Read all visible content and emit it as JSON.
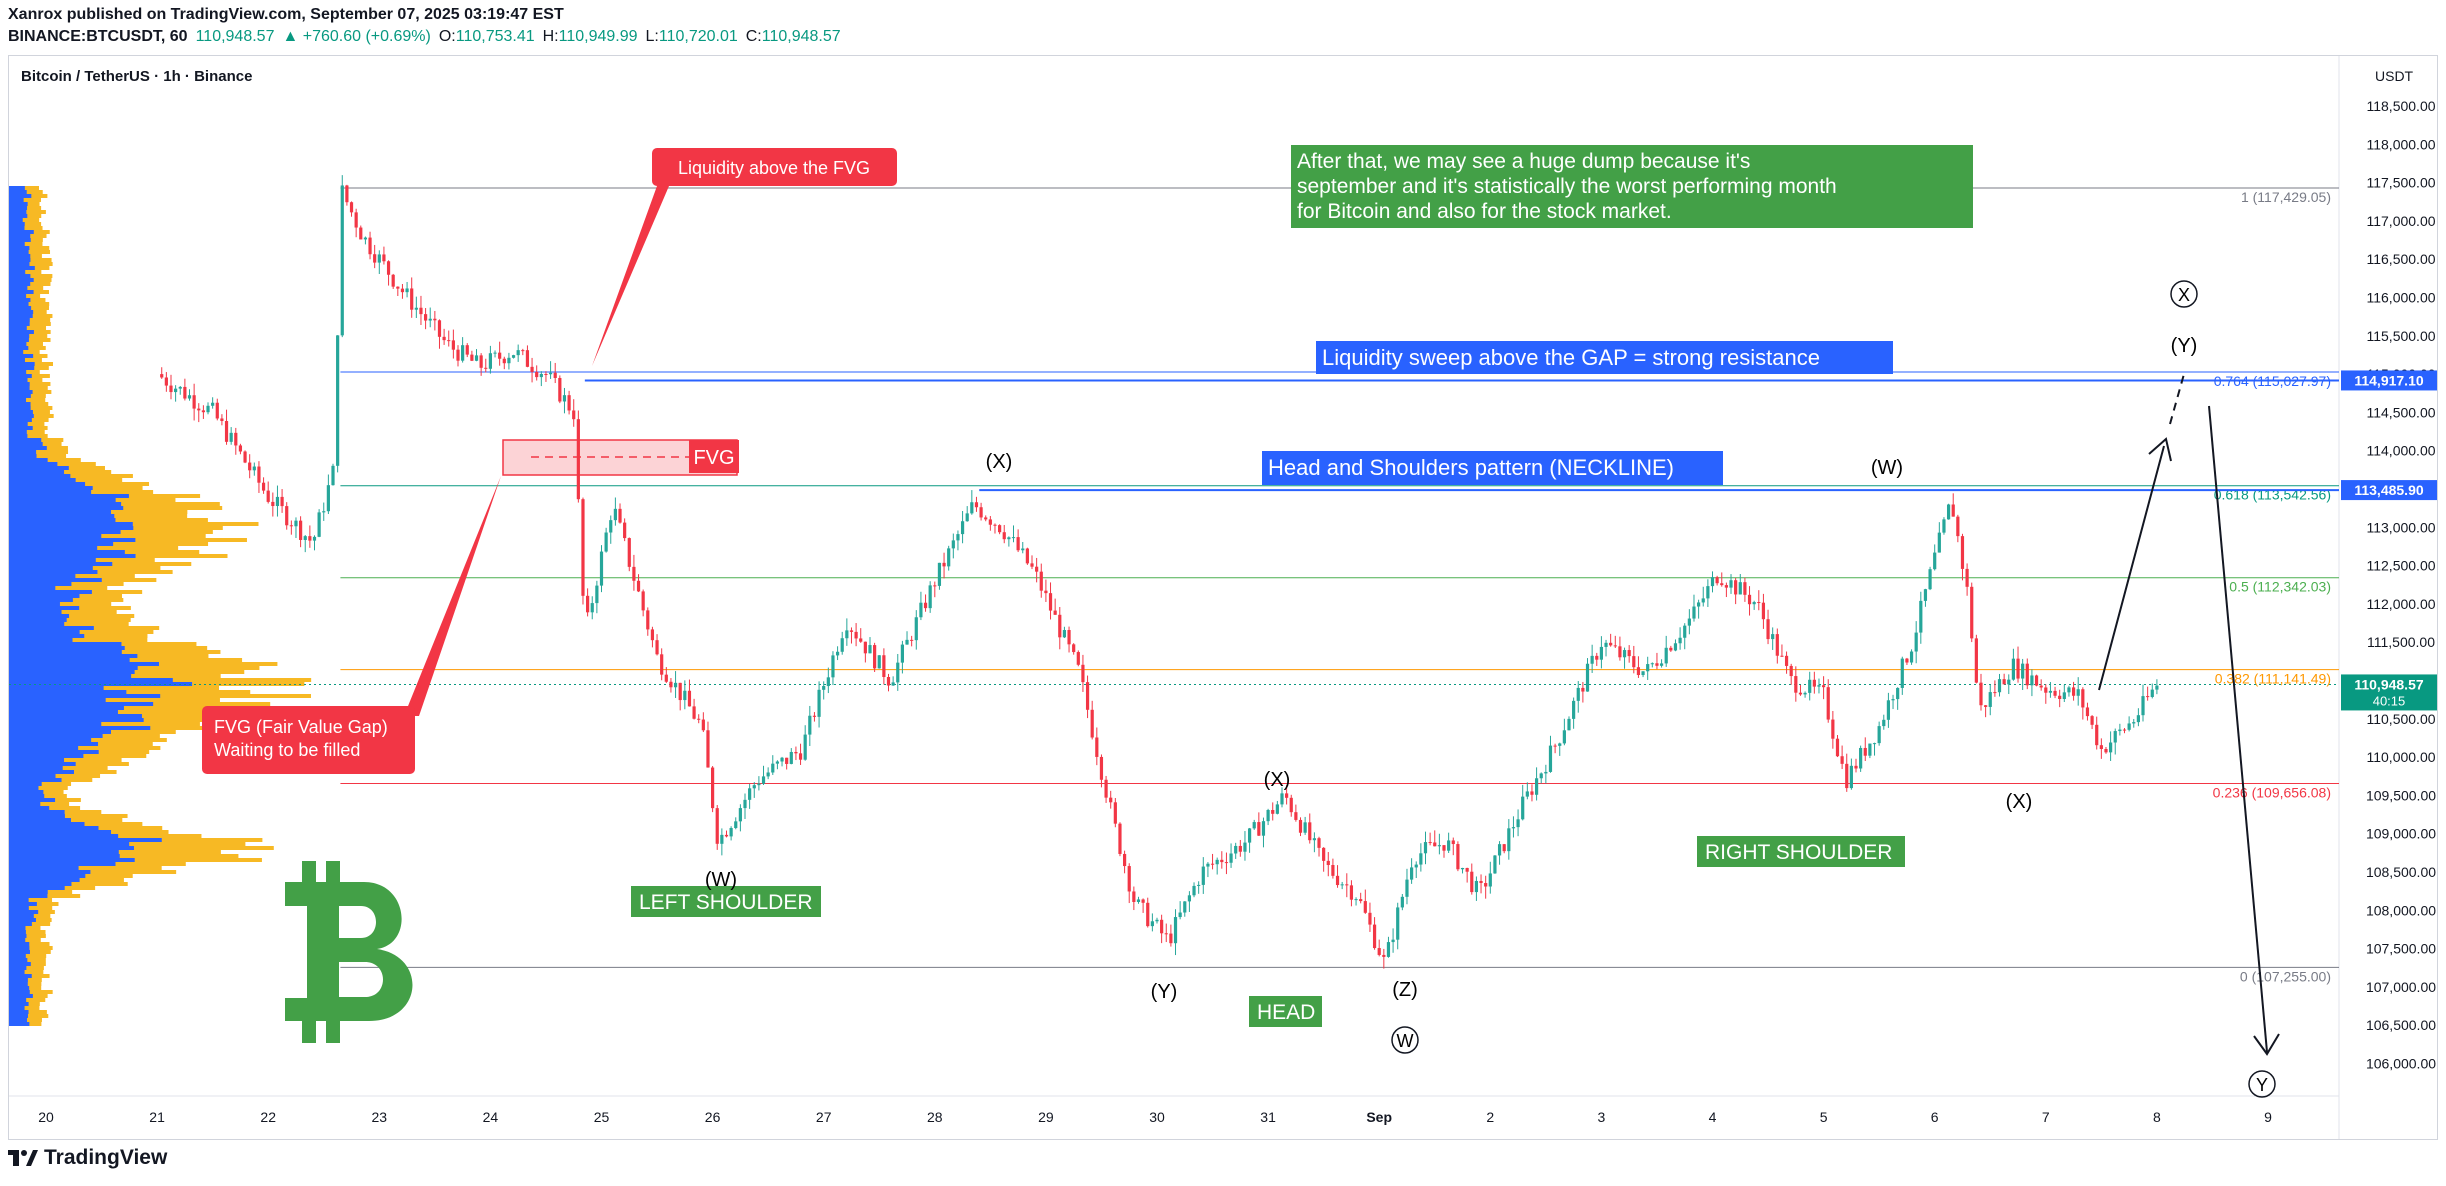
{
  "header": {
    "publish_line": "Xanrox published on TradingView.com, September 07, 2025 03:19:47 EST",
    "symbol": "BINANCE:BTCUSDT, 60",
    "last": "110,948.57",
    "change": "▲ +760.60 (+0.69%)",
    "o_label": "O:",
    "o_value": "110,753.41",
    "h_label": "H:",
    "h_value": "110,949.99",
    "l_label": "L:",
    "l_value": "110,720.01",
    "c_label": "C:",
    "c_value": "110,948.57"
  },
  "chart_title": "Bitcoin / TetherUS · 1h · Binance",
  "currency": "USDT",
  "footer_brand": "TradingView",
  "colors": {
    "up": "#089981",
    "up_bright": "#26a69a",
    "down": "#f23645",
    "blue": "#2962ff",
    "green_box": "#43a047",
    "red_box": "#f23645",
    "vp_blue": "#2962ff",
    "vp_yellow": "#f7b924"
  },
  "chart_data": {
    "type": "candlestick",
    "title": "Bitcoin / TetherUS · 1h · Binance",
    "ylim": [
      105500,
      119000
    ],
    "y_ticks": [
      106000,
      106500,
      107000,
      107500,
      108000,
      108500,
      109000,
      109500,
      110000,
      110500,
      111000,
      111500,
      112000,
      112500,
      113000,
      113500,
      114000,
      114500,
      115000,
      115500,
      116000,
      116500,
      117000,
      117500,
      118000,
      118500
    ],
    "y_tick_labels": [
      "106,000.00",
      "106,500.00",
      "107,000.00",
      "107,500.00",
      "108,000.00",
      "108,500.00",
      "109,000.00",
      "109,500.00",
      "110,000.00",
      "110,500.00",
      "111,000.00",
      "111,500.00",
      "112,000.00",
      "112,500.00",
      "113,000.00",
      "113,500.00",
      "114,000.00",
      "114,500.00",
      "115,000.00",
      "115,500.00",
      "116,000.00",
      "116,500.00",
      "117,000.00",
      "117,500.00",
      "118,000.00",
      "118,500.00"
    ],
    "x_ticks": [
      "20",
      "21",
      "22",
      "23",
      "24",
      "25",
      "26",
      "27",
      "28",
      "29",
      "30",
      "31",
      "Sep",
      "2",
      "3",
      "4",
      "5",
      "6",
      "7",
      "8",
      "9"
    ],
    "x_tick_days": [
      0,
      1,
      2,
      3,
      4,
      5,
      6,
      7,
      8,
      9,
      10,
      11,
      12,
      13,
      14,
      15,
      16,
      17,
      18,
      19,
      20
    ],
    "price_path": [
      [
        1.0,
        115000
      ],
      [
        1.5,
        114500
      ],
      [
        2.0,
        113400
      ],
      [
        2.4,
        112800
      ],
      [
        2.6,
        113800
      ],
      [
        2.65,
        117429
      ],
      [
        2.85,
        116800
      ],
      [
        3.2,
        116100
      ],
      [
        3.6,
        115400
      ],
      [
        3.9,
        115100
      ],
      [
        4.2,
        115300
      ],
      [
        4.5,
        115000
      ],
      [
        4.75,
        114500
      ],
      [
        4.85,
        111600
      ],
      [
        5.1,
        113300
      ],
      [
        5.5,
        111300
      ],
      [
        5.9,
        110400
      ],
      [
        6.05,
        108900
      ],
      [
        6.4,
        109700
      ],
      [
        6.8,
        110100
      ],
      [
        7.2,
        111800
      ],
      [
        7.6,
        111000
      ],
      [
        8.0,
        112300
      ],
      [
        8.35,
        113300
      ],
      [
        8.6,
        113000
      ],
      [
        8.9,
        112400
      ],
      [
        9.3,
        111100
      ],
      [
        9.6,
        109200
      ],
      [
        9.8,
        108100
      ],
      [
        10.1,
        107600
      ],
      [
        10.4,
        108500
      ],
      [
        10.8,
        108900
      ],
      [
        11.15,
        109500
      ],
      [
        11.5,
        108600
      ],
      [
        11.8,
        108200
      ],
      [
        12.05,
        107300
      ],
      [
        12.3,
        108700
      ],
      [
        12.6,
        108900
      ],
      [
        12.9,
        108200
      ],
      [
        13.3,
        109400
      ],
      [
        13.6,
        110200
      ],
      [
        14.0,
        111500
      ],
      [
        14.4,
        111100
      ],
      [
        14.8,
        111800
      ],
      [
        15.05,
        112400
      ],
      [
        15.4,
        112000
      ],
      [
        15.7,
        111000
      ],
      [
        16.0,
        110800
      ],
      [
        16.2,
        109700
      ],
      [
        16.5,
        110400
      ],
      [
        16.8,
        111500
      ],
      [
        17.0,
        112600
      ],
      [
        17.15,
        113350
      ],
      [
        17.3,
        112100
      ],
      [
        17.4,
        110600
      ],
      [
        17.7,
        111200
      ],
      [
        18.0,
        110900
      ],
      [
        18.3,
        110800
      ],
      [
        18.5,
        110100
      ],
      [
        18.8,
        110500
      ],
      [
        19.0,
        110949
      ]
    ],
    "ohlc_last": {
      "open": 110753.41,
      "high": 110949.99,
      "low": 110720.01,
      "close": 110948.57
    },
    "fib_levels": [
      {
        "label": "1 (117,429.05)",
        "value": 117429.05,
        "color": "#787b86"
      },
      {
        "label": "0.764 (115,027.97)",
        "value": 115027.97,
        "color": "#2962ff"
      },
      {
        "label": "0.618 (113,542.56)",
        "value": 113542.56,
        "color": "#089981"
      },
      {
        "label": "0.5 (112,342.03)",
        "value": 112342.03,
        "color": "#4caf50"
      },
      {
        "label": "0.382 (111,141.49)",
        "value": 111141.49,
        "color": "#ff9800"
      },
      {
        "label": "0.236 (109,656.08)",
        "value": 109656.08,
        "color": "#f23645"
      },
      {
        "label": "0 (107,255.00)",
        "value": 107255.0,
        "color": "#787b86"
      }
    ],
    "price_tags": [
      {
        "label": "114,917.10",
        "value": 114917.1,
        "color": "#2962ff"
      },
      {
        "label": "113,485.90",
        "value": 113485.9,
        "color": "#2962ff"
      },
      {
        "label": "110,948.57",
        "sub": "40:15",
        "value": 110948.57,
        "color": "#089981"
      }
    ],
    "annotations": {
      "liquidity_fvg": "Liquidity above the FVG",
      "fvg": "FVG",
      "fvg_note_line1": "FVG (Fair Value Gap)",
      "fvg_note_line2": "Waiting to be filled",
      "dump_line1": "After that, we may see a huge dump because it's",
      "dump_line2": "september and it's statistically the worst performing month",
      "dump_line3": "for Bitcoin and also for the stock market.",
      "sweep": "Liquidity sweep above the GAP = strong resistance",
      "neckline": "Head and Shoulders pattern (NECKLINE)",
      "left_shoulder": "LEFT SHOULDER",
      "head": "HEAD",
      "right_shoulder": "RIGHT SHOULDER",
      "waves": [
        "(W)",
        "(X)",
        "(X)",
        "(Y)",
        "(Z)",
        "W",
        "(W)",
        "(X)",
        "X",
        "(Y)",
        "Y"
      ]
    }
  }
}
